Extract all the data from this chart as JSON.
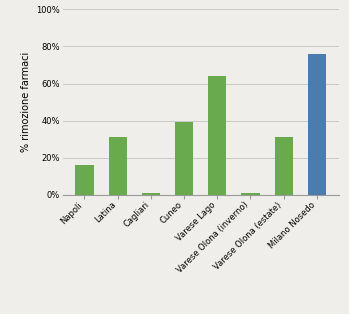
{
  "categories": [
    "Napoli",
    "Latina",
    "Cagliari",
    "Cuneo",
    "Varese Lago",
    "Varese Olona (inverno)",
    "Varese Olona (estate)",
    "Milano Nosedo"
  ],
  "values": [
    0.16,
    0.31,
    0.01,
    0.39,
    0.64,
    0.01,
    0.31,
    0.76
  ],
  "colors": [
    "#6aaa4e",
    "#6aaa4e",
    "#6aaa4e",
    "#6aaa4e",
    "#6aaa4e",
    "#6aaa4e",
    "#6aaa4e",
    "#4c7bae"
  ],
  "ylabel": "% rimozione farmaci",
  "ylim": [
    0,
    1.0
  ],
  "yticks": [
    0,
    0.2,
    0.4,
    0.6,
    0.8,
    1.0
  ],
  "ytick_labels": [
    "0%",
    "20%",
    "40%",
    "60%",
    "80%",
    "100%"
  ],
  "background_color": "#f0eeeb",
  "plot_bg_color": "#f0eeeb",
  "grid_color": "#c8c8c8",
  "ylabel_fontsize": 7,
  "tick_fontsize": 6,
  "bar_width": 0.55
}
